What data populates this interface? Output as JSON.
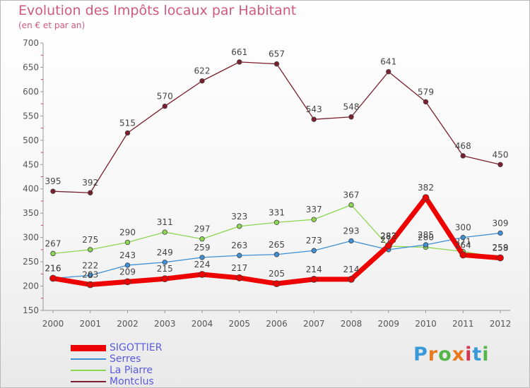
{
  "chart_data": {
    "type": "line",
    "title": "Evolution des Impôts locaux par Habitant",
    "subtitle": "(en € et par an)",
    "xlabel": "",
    "ylabel": "",
    "ylim": [
      150,
      700
    ],
    "yticks": [
      150,
      200,
      250,
      300,
      350,
      400,
      450,
      500,
      550,
      600,
      650,
      700
    ],
    "categories": [
      "2000",
      "2001",
      "2002",
      "2003",
      "2004",
      "2005",
      "2006",
      "2007",
      "2008",
      "2009",
      "2010",
      "2011",
      "2012"
    ],
    "grid": false,
    "legend_position": "bottom-left",
    "series": [
      {
        "name": "Montclus",
        "color": "#7b1f2e",
        "values": [
          395,
          392,
          515,
          570,
          622,
          661,
          657,
          543,
          548,
          641,
          579,
          468,
          450
        ],
        "labels": [
          "395",
          "392",
          "515",
          "570",
          "622",
          "661",
          "657",
          "543",
          "548",
          "641",
          "579",
          "468",
          "450"
        ]
      },
      {
        "name": "La Piarre",
        "color": "#8cd651",
        "values": [
          267,
          275,
          290,
          311,
          297,
          323,
          331,
          337,
          367,
          282,
          280,
          271,
          259
        ],
        "labels": [
          "267",
          "275",
          "290",
          "311",
          "297",
          "323",
          "331",
          "337",
          "367",
          "282",
          "280",
          "271",
          "259"
        ]
      },
      {
        "name": "Serres",
        "color": "#3d8fd6",
        "values": [
          216,
          222,
          243,
          249,
          259,
          263,
          265,
          273,
          293,
          275,
          285,
          300,
          309
        ],
        "labels": [
          "216",
          "222",
          "243",
          "249",
          "259",
          "263",
          "265",
          "273",
          "293",
          "275",
          "285",
          "300",
          "309"
        ]
      },
      {
        "name": "SIGOTTIER",
        "color": "#ee0000",
        "values": [
          216,
          203,
          209,
          215,
          224,
          217,
          205,
          214,
          214,
          283,
          382,
          264,
          258
        ],
        "labels": [
          "216",
          "203",
          "209",
          "215",
          "224",
          "217",
          "205",
          "214",
          "214",
          "283",
          "382",
          "264",
          "258"
        ]
      }
    ],
    "legend": [
      {
        "name": "SIGOTTIER",
        "color": "#ee0000",
        "width": 9
      },
      {
        "name": "Serres",
        "color": "#3d8fd6",
        "width": 2
      },
      {
        "name": "La Piarre",
        "color": "#8cd651",
        "width": 2
      },
      {
        "name": "Montclus",
        "color": "#7b1f2e",
        "width": 2
      }
    ]
  },
  "logo": {
    "letters": [
      "P",
      "r",
      "o",
      "x",
      "i",
      "t",
      "i"
    ],
    "colors": [
      "#3a9ad9",
      "#e8791f",
      "#56b548",
      "#e8791f",
      "#d6364f",
      "#3a9ad9",
      "#56b548"
    ]
  }
}
